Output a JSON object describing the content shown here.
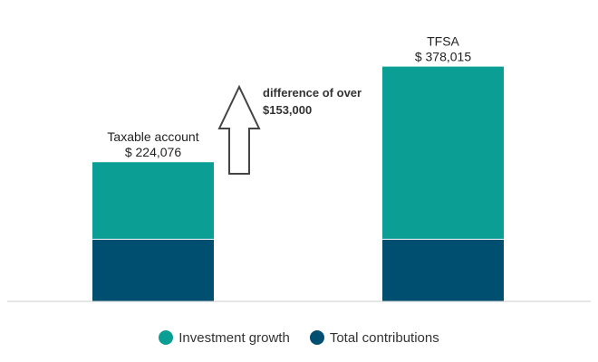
{
  "chart_data": {
    "type": "bar",
    "stacked": true,
    "categories": [
      "Taxable account",
      "TFSA"
    ],
    "totals": [
      "$ 224,076",
      "$ 378,015"
    ],
    "series": [
      {
        "name": "Total contributions",
        "values": [
          100000,
          100000
        ],
        "color": "#004f71"
      },
      {
        "name": "Investment growth",
        "values": [
          124076,
          278015
        ],
        "color": "#0b9e94"
      }
    ],
    "ylim": [
      0,
      400000
    ],
    "grid": false,
    "legend": "bottom",
    "annotation": {
      "text_line1": "difference of over",
      "text_line2": "$153,000",
      "icon": "up-arrow-outline-icon"
    },
    "baseline_color": "#cccccc"
  }
}
